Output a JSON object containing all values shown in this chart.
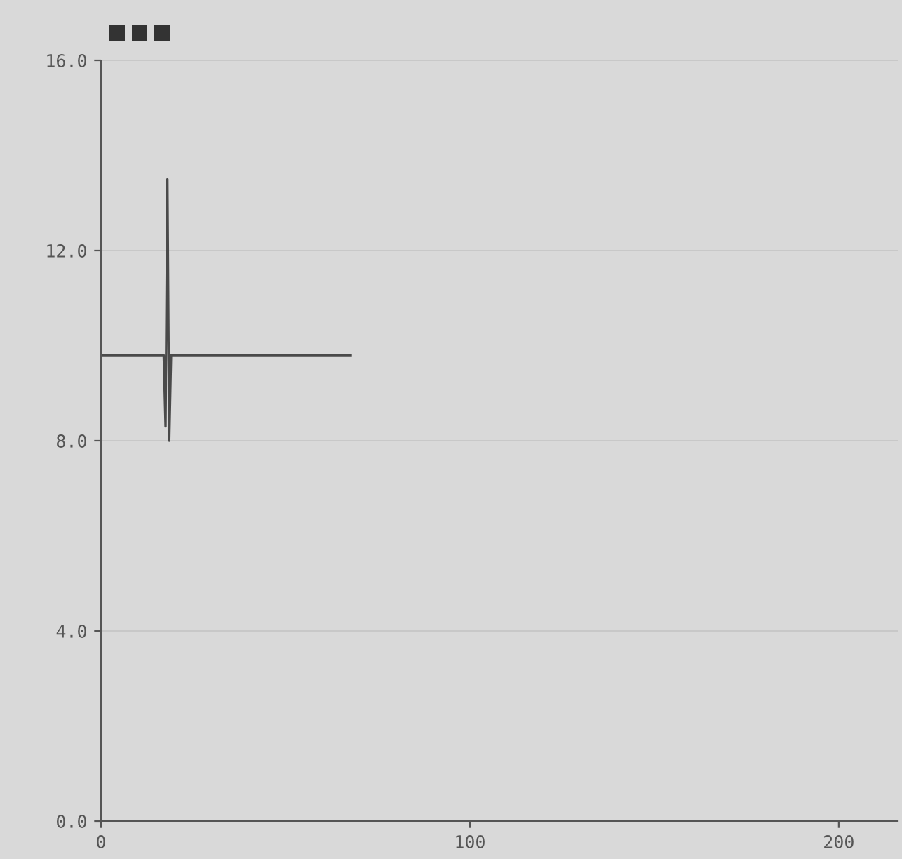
{
  "chart_data": {
    "type": "line",
    "x": [
      0,
      17.0,
      17.5,
      18.0,
      18.5,
      19.0,
      67.7
    ],
    "series": [
      {
        "color": "#4a4a4a",
        "values": [
          9.8,
          9.8,
          8.3,
          13.5,
          8.0,
          9.8,
          9.8
        ]
      }
    ],
    "xlim": [
      0,
      216
    ],
    "ylim": [
      0,
      16
    ],
    "xticks": [
      0,
      100,
      200
    ],
    "yticks": [
      {
        "value": 0,
        "label": "0.0"
      },
      {
        "value": 4,
        "label": "4.0"
      },
      {
        "value": 8,
        "label": "8.0"
      },
      {
        "value": 12,
        "label": "12.0"
      },
      {
        "value": 16,
        "label": "16.0"
      }
    ],
    "grid": "y",
    "marker": "none",
    "line_style": "solid"
  }
}
